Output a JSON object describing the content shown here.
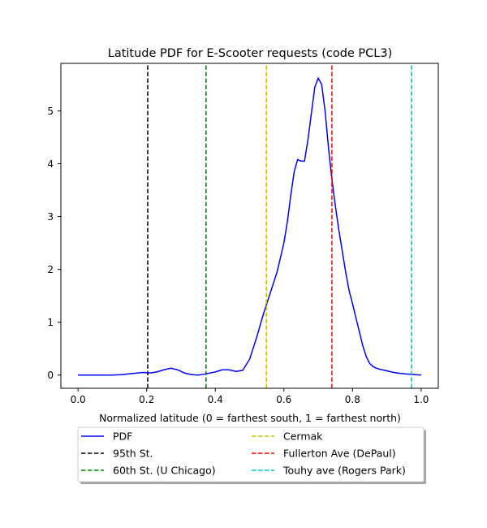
{
  "chart_data": {
    "type": "line",
    "title": "Latitude PDF for E-Scooter  requests (code PCL3)",
    "xlabel": "Normalized latitude (0 = farthest south, 1 = farthest north)",
    "ylabel": "",
    "xlim": [
      -0.05,
      1.05
    ],
    "ylim": [
      -0.25,
      5.9
    ],
    "xticks": [
      "0.0",
      "0.2",
      "0.4",
      "0.6",
      "0.8",
      "1.0"
    ],
    "yticks": [
      "0",
      "1",
      "2",
      "3",
      "4",
      "5"
    ],
    "grid": false,
    "legend_placement": "below plot, two columns",
    "series": [
      {
        "name": "PDF",
        "color": "#0000ff",
        "style": "solid",
        "x": [
          0.0,
          0.05,
          0.1,
          0.13,
          0.16,
          0.19,
          0.21,
          0.23,
          0.25,
          0.27,
          0.29,
          0.31,
          0.33,
          0.35,
          0.37,
          0.4,
          0.42,
          0.44,
          0.46,
          0.48,
          0.5,
          0.52,
          0.54,
          0.56,
          0.58,
          0.6,
          0.61,
          0.62,
          0.63,
          0.64,
          0.65,
          0.66,
          0.67,
          0.68,
          0.69,
          0.7,
          0.71,
          0.72,
          0.73,
          0.74,
          0.75,
          0.76,
          0.77,
          0.78,
          0.79,
          0.8,
          0.81,
          0.82,
          0.83,
          0.84,
          0.85,
          0.86,
          0.87,
          0.88,
          0.9,
          0.92,
          0.94,
          0.96,
          0.98,
          1.0
        ],
        "y": [
          0.0,
          0.0,
          0.0,
          0.01,
          0.03,
          0.05,
          0.04,
          0.06,
          0.1,
          0.13,
          0.1,
          0.04,
          0.01,
          0.0,
          0.02,
          0.06,
          0.1,
          0.1,
          0.07,
          0.09,
          0.3,
          0.7,
          1.15,
          1.55,
          1.95,
          2.5,
          2.9,
          3.4,
          3.85,
          4.08,
          4.05,
          4.05,
          4.45,
          4.95,
          5.45,
          5.62,
          5.5,
          5.0,
          4.3,
          3.7,
          3.2,
          2.75,
          2.35,
          1.95,
          1.6,
          1.35,
          1.08,
          0.82,
          0.55,
          0.35,
          0.22,
          0.16,
          0.13,
          0.11,
          0.08,
          0.05,
          0.03,
          0.02,
          0.01,
          0.0
        ]
      },
      {
        "name": "95th St.",
        "color": "#000000",
        "style": "dashed",
        "x": [
          0.203,
          0.203
        ],
        "y": [
          -0.25,
          5.9
        ]
      },
      {
        "name": "60th St. (U Chicago)",
        "color": "#008000",
        "style": "dashed",
        "x": [
          0.373,
          0.373
        ],
        "y": [
          -0.25,
          5.9
        ]
      },
      {
        "name": "Cermak",
        "color": "#bfbf00",
        "style": "dashed",
        "x": [
          0.549,
          0.549
        ],
        "y": [
          -0.25,
          5.9
        ]
      },
      {
        "name": "Fullerton Ave (DePaul)",
        "color": "#ff0000",
        "style": "dashed",
        "x": [
          0.74,
          0.74
        ],
        "y": [
          -0.25,
          5.9
        ]
      },
      {
        "name": "Touhy ave (Rogers Park)",
        "color": "#00bfbf",
        "style": "dashed",
        "x": [
          0.972,
          0.972
        ],
        "y": [
          -0.25,
          5.9
        ]
      }
    ]
  }
}
